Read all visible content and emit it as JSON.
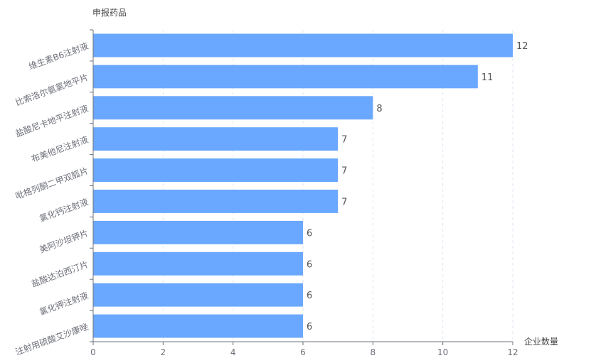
{
  "chart_data": {
    "type": "bar",
    "orientation": "horizontal",
    "y_axis_title": "申报药品",
    "x_axis_title": "企业数量",
    "categories": [
      "维生素B6注射液",
      "比索洛尔氨氯地平片",
      "盐酸尼卡地平注射液",
      "布美他尼注射液",
      "吡格列酮二甲双胍片",
      "氯化钙注射液",
      "美阿沙坦钾片",
      "盐酸达泊西汀片",
      "氯化钾注射液",
      "注射用硫酸艾沙康唑"
    ],
    "values": [
      12,
      11,
      8,
      7,
      7,
      7,
      6,
      6,
      6,
      6
    ],
    "xlim": [
      0,
      12
    ],
    "x_ticks": [
      0,
      2,
      4,
      6,
      8,
      10,
      12
    ],
    "grid": "vertical-dashed",
    "bar_color": "#6aa8ff"
  }
}
